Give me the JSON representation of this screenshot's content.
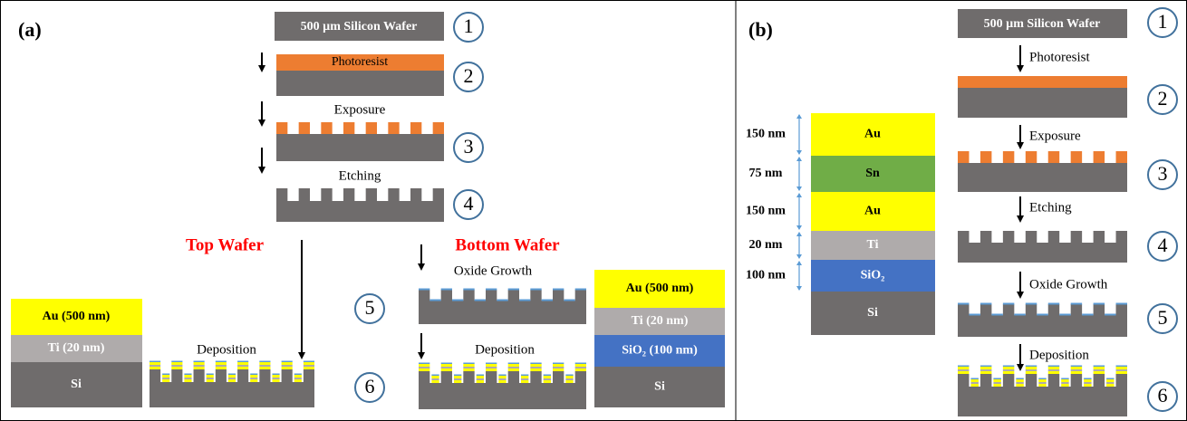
{
  "panel_a": {
    "label": "(a)",
    "wafer_label": "500 µm Silicon Wafer",
    "photoresist": "Photoresist",
    "exposure": "Exposure",
    "etching": "Etching",
    "top_wafer": "Top Wafer",
    "bottom_wafer": "Bottom Wafer",
    "oxide_growth": "Oxide Growth",
    "deposition_top": "Deposition",
    "deposition_bottom": "Deposition",
    "step_numbers": [
      "1",
      "2",
      "3",
      "4",
      "5",
      "6"
    ],
    "top_stack": [
      "Au (500 nm)",
      "Ti (20 nm)",
      "Si"
    ],
    "bottom_stack": [
      "Au (500 nm)",
      "Ti (20 nm)",
      "SiO₂ (100 nm)",
      "Si"
    ]
  },
  "panel_b": {
    "label": "(b)",
    "wafer_label": "500 µm Silicon Wafer",
    "photoresist": "Photoresist",
    "exposure": "Exposure",
    "etching": "Etching",
    "oxide_growth": "Oxide Growth",
    "deposition": "Deposition",
    "step_numbers": [
      "1",
      "2",
      "3",
      "4",
      "5",
      "6"
    ],
    "layers": [
      {
        "name": "Au",
        "thickness": "150 nm"
      },
      {
        "name": "Sn",
        "thickness": "75 nm"
      },
      {
        "name": "Au",
        "thickness": "150 nm"
      },
      {
        "name": "Ti",
        "thickness": "20 nm"
      },
      {
        "name": "SiO₂",
        "thickness": "100 nm"
      },
      {
        "name": "Si"
      }
    ]
  }
}
